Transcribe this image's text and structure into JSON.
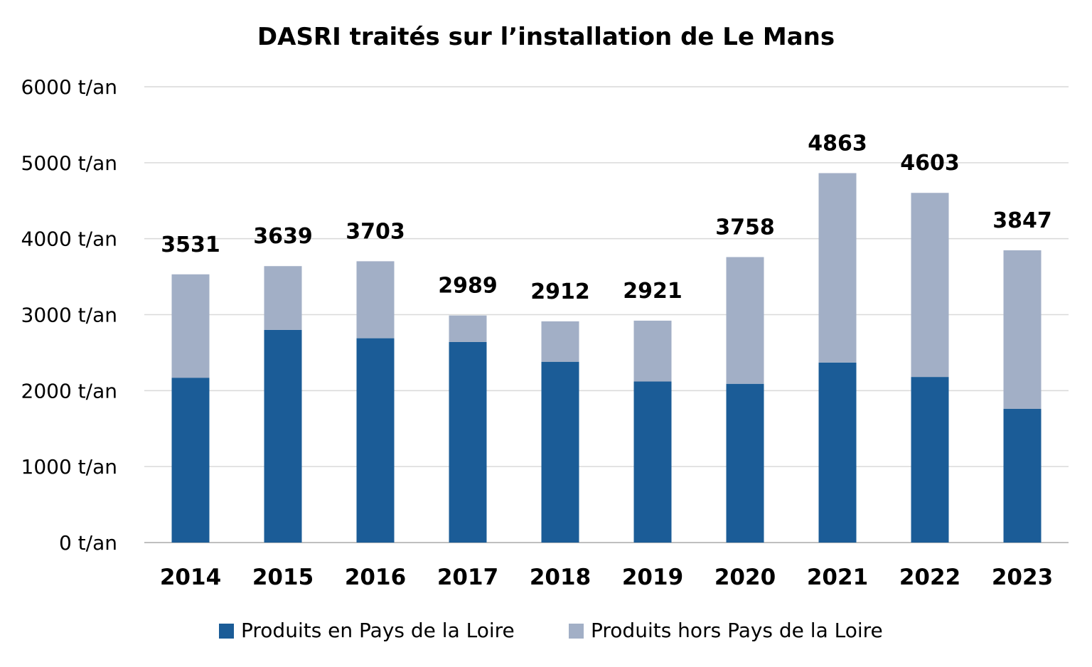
{
  "chart_data": {
    "type": "bar",
    "stacked": true,
    "title": "DASRI traités sur l’installation de Le Mans",
    "categories": [
      "2014",
      "2015",
      "2016",
      "2017",
      "2018",
      "2019",
      "2020",
      "2021",
      "2022",
      "2023"
    ],
    "series": [
      {
        "name": "Produits en Pays de la Loire",
        "color": "#1b5c97",
        "values": [
          2170,
          2800,
          2690,
          2640,
          2380,
          2120,
          2090,
          2370,
          2180,
          1760
        ]
      },
      {
        "name": "Produits hors Pays de la Loire",
        "color": "#a2afc6",
        "values": [
          1361,
          839,
          1013,
          349,
          532,
          801,
          1668,
          2493,
          2423,
          2087
        ]
      }
    ],
    "totals": [
      "3531",
      "3639",
      "3703",
      "2989",
      "2912",
      "2921",
      "3758",
      "4863",
      "4603",
      "3847"
    ],
    "yticks": [
      0,
      1000,
      2000,
      3000,
      4000,
      5000,
      6000
    ],
    "ytick_labels": [
      "0 t/an",
      "1000 t/an",
      "2000 t/an",
      "3000 t/an",
      "4000 t/an",
      "5000 t/an",
      "6000 t/an"
    ],
    "ylim": [
      0,
      6000
    ],
    "xlabel": "",
    "ylabel": "",
    "grid": true,
    "legend_position": "bottom"
  }
}
